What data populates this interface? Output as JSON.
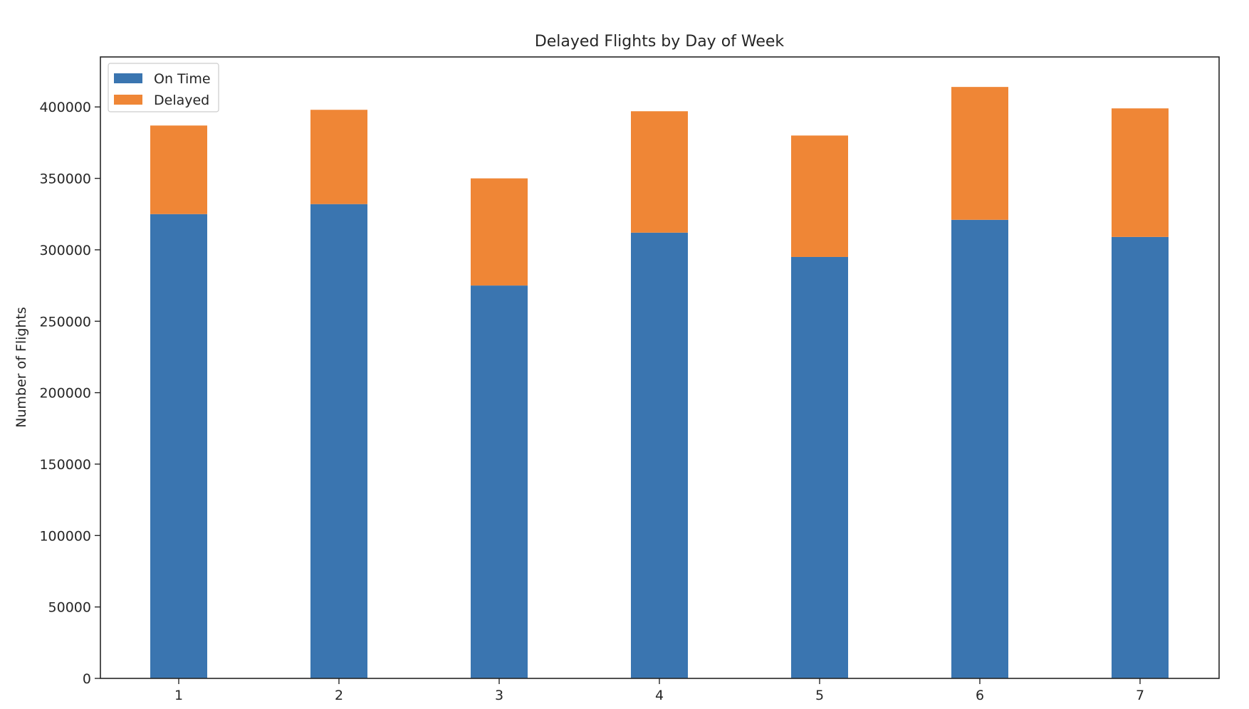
{
  "chart_data": {
    "type": "bar",
    "stacked": true,
    "title": "Delayed Flights by Day of Week",
    "xlabel": "",
    "ylabel": "Number of Flights",
    "categories": [
      "1",
      "2",
      "3",
      "4",
      "5",
      "6",
      "7"
    ],
    "series": [
      {
        "name": "On Time",
        "color": "#3a75b0",
        "values": [
          325000,
          332000,
          275000,
          312000,
          295000,
          321000,
          309000
        ]
      },
      {
        "name": "Delayed",
        "color": "#ef8636",
        "values": [
          62000,
          66000,
          75000,
          85000,
          85000,
          93000,
          90000
        ]
      }
    ],
    "ylim": [
      0,
      435000
    ],
    "yticks": [
      0,
      50000,
      100000,
      150000,
      200000,
      250000,
      300000,
      350000,
      400000
    ],
    "grid": false,
    "legend_position": "top-left"
  }
}
